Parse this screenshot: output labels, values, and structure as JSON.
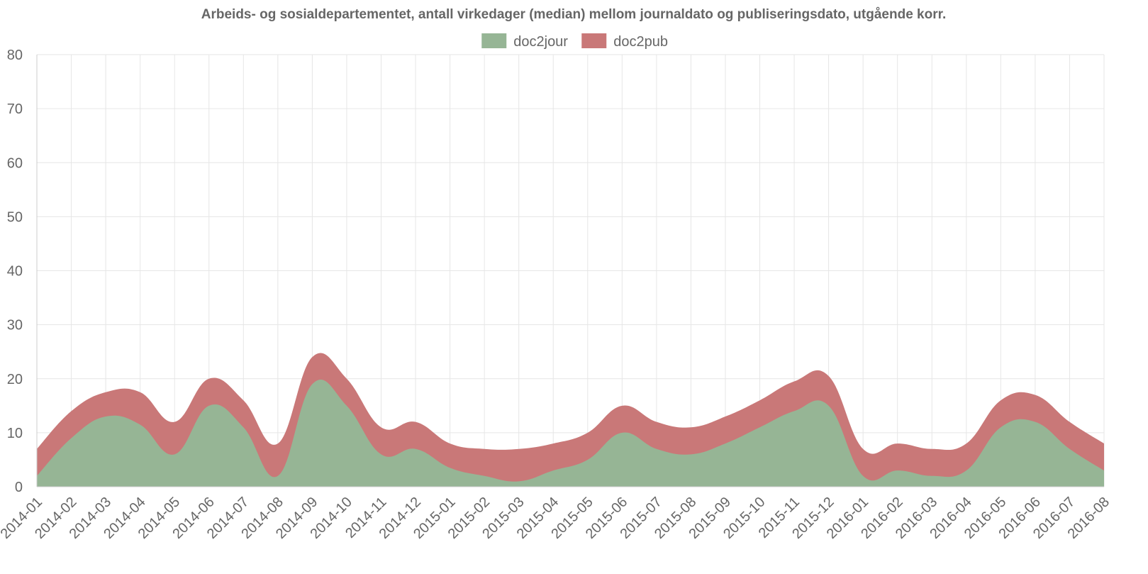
{
  "chart_data": {
    "type": "area",
    "stacked": true,
    "title": "Arbeids- og sosialdepartementet, antall virkedager (median) mellom journaldato og publiseringsdato, utgående korr.",
    "legend_position": "top",
    "grid": true,
    "ylim": [
      0,
      80
    ],
    "yticks": [
      0,
      10,
      20,
      30,
      40,
      50,
      60,
      70,
      80
    ],
    "categories": [
      "2014-01",
      "2014-02",
      "2014-03",
      "2014-04",
      "2014-05",
      "2014-06",
      "2014-07",
      "2014-08",
      "2014-09",
      "2014-10",
      "2014-11",
      "2014-12",
      "2015-01",
      "2015-02",
      "2015-03",
      "2015-04",
      "2015-05",
      "2015-06",
      "2015-07",
      "2015-08",
      "2015-09",
      "2015-10",
      "2015-11",
      "2015-12",
      "2016-01",
      "2016-02",
      "2016-03",
      "2016-04",
      "2016-05",
      "2016-06",
      "2016-07",
      "2016-08"
    ],
    "series": [
      {
        "name": "doc2jour",
        "color": "#96b595",
        "values": [
          2,
          9,
          13,
          11.5,
          6,
          15,
          11,
          2,
          19,
          15,
          6,
          7,
          3.5,
          2,
          1,
          3,
          5,
          10,
          7,
          6,
          8,
          11,
          14,
          15,
          2,
          3,
          2,
          3,
          11,
          12,
          7,
          3
        ]
      },
      {
        "name": "doc2pub",
        "color": "#c97878",
        "values": [
          5,
          5,
          4.5,
          6,
          6,
          5,
          5,
          6,
          5,
          5,
          5,
          5,
          4.5,
          5,
          6,
          5,
          5,
          5,
          5,
          5,
          5,
          5,
          5.5,
          5.5,
          5,
          5,
          5,
          5,
          5,
          5,
          5,
          5
        ]
      }
    ]
  }
}
